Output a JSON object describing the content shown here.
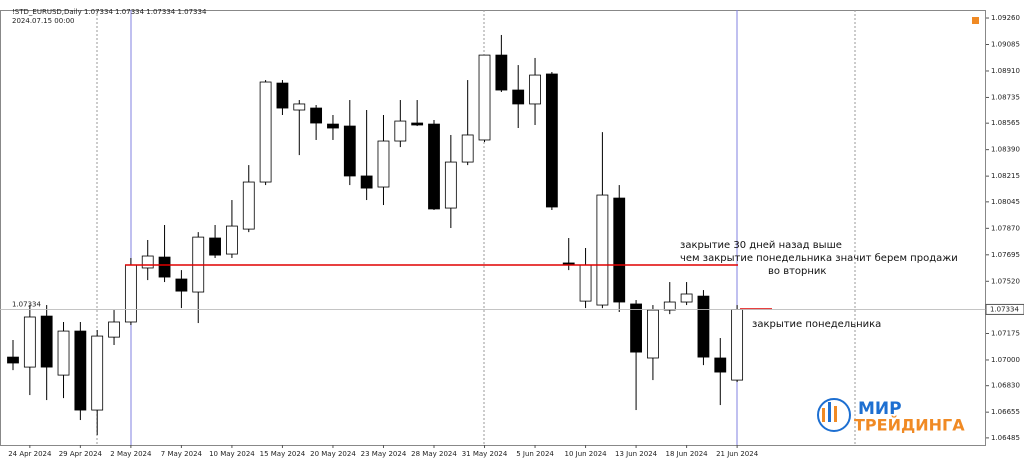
{
  "chart_data": {
    "type": "candlestick",
    "title": "!STD_EURUSD,Daily 1.07334 1.07334 1.07334 1.07334",
    "subtitle": "2024.07.15 00:00",
    "categories": [
      null,
      "24 Apr 2024",
      null,
      null,
      "29 Apr 2024",
      null,
      null,
      "2 May 2024",
      null,
      null,
      "7 May 2024",
      null,
      null,
      "10 May 2024",
      null,
      null,
      "15 May 2024",
      null,
      null,
      "20 May 2024",
      null,
      null,
      "23 May 2024",
      null,
      null,
      "28 May 2024",
      null,
      null,
      "31 May 2024",
      null,
      null,
      "5 Jun 2024",
      null,
      null,
      "10 Jun 2024",
      null,
      null,
      "13 Jun 2024",
      null,
      null,
      "18 Jun 2024",
      null,
      null,
      "21 Jun 2024"
    ],
    "open": [
      1.07019,
      1.06953,
      1.0729,
      1.069,
      1.07191,
      1.06669,
      1.07151,
      1.07251,
      1.07608,
      1.0768,
      1.07535,
      1.07449,
      1.07806,
      1.077,
      1.07865,
      1.08176,
      1.0883,
      1.08652,
      1.08665,
      1.08559,
      1.08546,
      1.08216,
      1.08143,
      1.08447,
      1.08566,
      1.08559,
      1.08004,
      1.08308,
      1.08454,
      1.09015,
      1.08784,
      1.08692,
      1.0889,
      1.07641,
      1.07389,
      1.07363,
      1.0807,
      1.0737,
      1.07013,
      1.0733,
      1.07383,
      1.07422,
      1.07013,
      1.06867
    ],
    "high": [
      1.07132,
      1.07363,
      1.07363,
      1.07251,
      1.07251,
      1.07198,
      1.0733,
      1.07674,
      1.07793,
      1.07892,
      1.07594,
      1.07845,
      1.07892,
      1.08057,
      1.08288,
      1.0885,
      1.0885,
      1.08718,
      1.08685,
      1.08619,
      1.08718,
      1.08652,
      1.08619,
      1.08718,
      1.08718,
      1.08586,
      1.08487,
      1.0885,
      1.09015,
      1.09148,
      1.08949,
      1.08996,
      1.08903,
      1.07806,
      1.0774,
      1.08506,
      1.08156,
      1.07396,
      1.07363,
      1.07515,
      1.07515,
      1.07462,
      1.07145,
      1.07363
    ],
    "low": [
      1.06933,
      1.06768,
      1.06735,
      1.06748,
      1.06603,
      1.06504,
      1.07099,
      1.07231,
      1.07528,
      1.07515,
      1.07343,
      1.07244,
      1.07674,
      1.07674,
      1.07845,
      1.08156,
      1.08619,
      1.08354,
      1.08454,
      1.08454,
      1.08156,
      1.08057,
      1.08024,
      1.08407,
      1.08546,
      1.07991,
      1.07872,
      1.08288,
      1.0844,
      1.08771,
      1.08533,
      1.08553,
      1.07991,
      1.07594,
      1.07343,
      1.07343,
      1.07317,
      1.06669,
      1.06867,
      1.07303,
      1.07363,
      1.06966,
      1.06702,
      1.06854
    ],
    "close": [
      1.0698,
      1.07284,
      1.06953,
      1.07191,
      1.06669,
      1.07158,
      1.07251,
      1.07627,
      1.07687,
      1.07548,
      1.07455,
      1.07812,
      1.07693,
      1.07885,
      1.08176,
      1.08837,
      1.08665,
      1.08692,
      1.08566,
      1.08533,
      1.08216,
      1.08136,
      1.08447,
      1.08579,
      1.08553,
      1.07998,
      1.08308,
      1.08487,
      1.09015,
      1.08784,
      1.08692,
      1.08883,
      1.08011,
      1.07627,
      1.07627,
      1.0809,
      1.07383,
      1.07052,
      1.0733,
      1.07383,
      1.07436,
      1.07019,
      1.0692,
      1.07334
    ],
    "up_color": "#ffffff",
    "down_color": "#000000",
    "ylim": [
      1.06438,
      1.09313
    ],
    "yticks": [
      {
        "value": 1.0926,
        "label": "1.09260"
      },
      1.09085,
      {
        "value": 1.0891,
        "label": "1.08910"
      },
      1.08735,
      1.08565,
      {
        "value": 1.0839,
        "label": "1.08390"
      },
      1.08215,
      1.08045,
      {
        "value": 1.0787,
        "label": "1.07870"
      },
      1.07695,
      {
        "value": 1.0752,
        "label": "1.07520"
      },
      1.07175,
      {
        "value": 1.07,
        "label": "1.07000"
      },
      {
        "value": 1.0683,
        "label": "1.06830"
      },
      1.06655,
      1.06485
    ],
    "last_price_label": "1.07334",
    "annotations": [
      "закрытие 30 дней назад выше",
      "чем закрытие понедельника значит берем продажи",
      "во вторник",
      "закрытие понедельника"
    ],
    "logo": [
      "МИР",
      "ТРЕЙДИНГА"
    ]
  }
}
